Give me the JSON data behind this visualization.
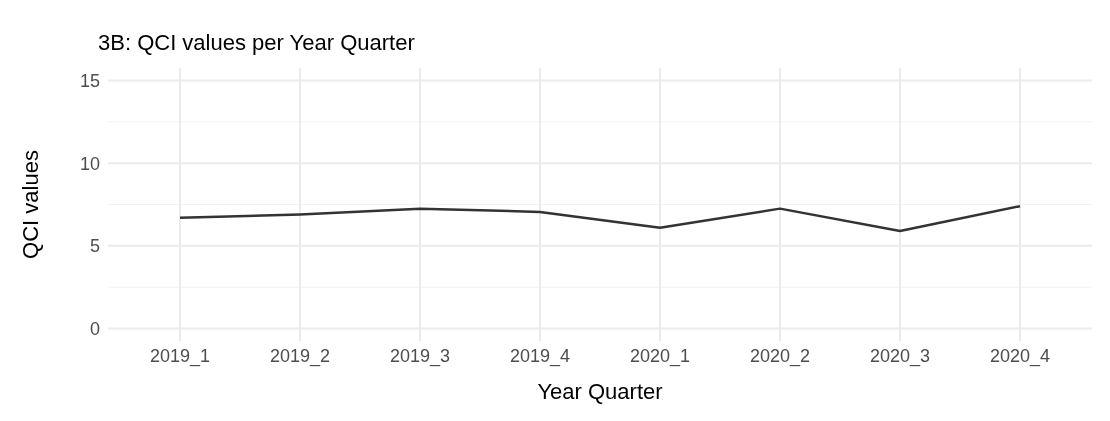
{
  "chart_data": {
    "type": "line",
    "title": "3B: QCI values per Year Quarter",
    "xlabel": "Year Quarter",
    "ylabel": "QCI values",
    "categories": [
      "2019_1",
      "2019_2",
      "2019_3",
      "2019_4",
      "2020_1",
      "2020_2",
      "2020_3",
      "2020_4"
    ],
    "series": [
      {
        "color": "#333333",
        "values": [
          6.7,
          6.9,
          7.25,
          7.05,
          6.1,
          7.25,
          5.9,
          7.4
        ]
      }
    ],
    "ylim": [
      -0.75,
      15.75
    ],
    "yticks": [
      0,
      5,
      10,
      15
    ],
    "grid": true,
    "legend": false,
    "marker": "none",
    "line_style": "solid"
  }
}
